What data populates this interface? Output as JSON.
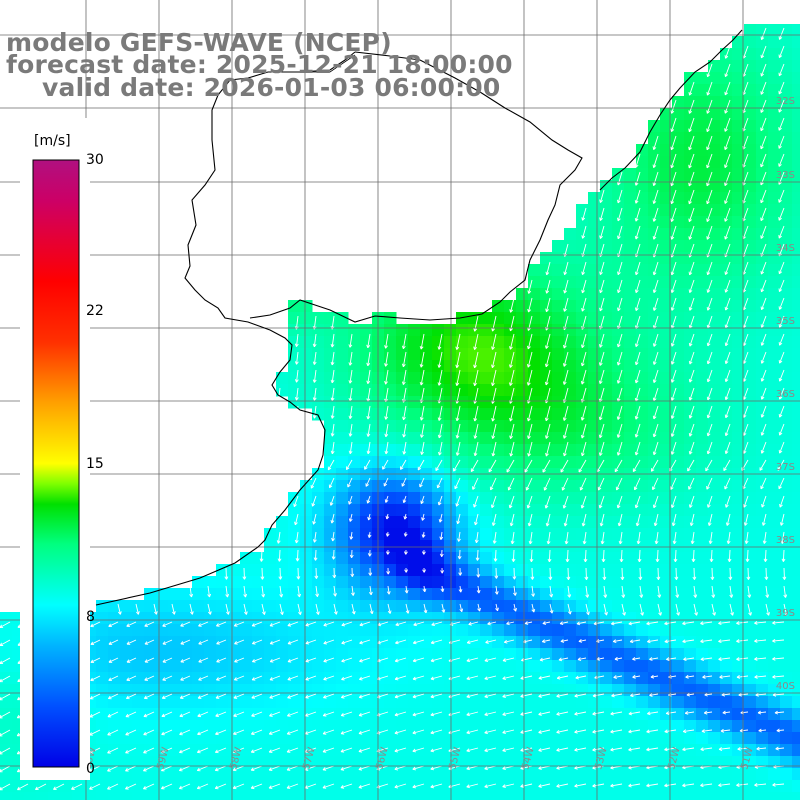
{
  "title": {
    "model": "modelo GEFS-WAVE (NCEP)",
    "forecast": "forecast date: 2025-12-21 18:00:00",
    "valid": "valid date: 2026-01-03 06:00:00"
  },
  "colorbar": {
    "units": "[m/s]",
    "ticks": [
      "30",
      "22",
      "15",
      "8",
      "0"
    ],
    "range": [
      0,
      30
    ],
    "colors": [
      "#0000e6",
      "#0050ff",
      "#00b4ff",
      "#00ffff",
      "#00ff80",
      "#00e000",
      "#80ff00",
      "#ffff00",
      "#ffa000",
      "#ff3000",
      "#ff0000",
      "#cc0066",
      "#b01080"
    ]
  },
  "grid": {
    "lat_labels": [
      "32S",
      "33S",
      "34S",
      "35S",
      "36S",
      "37S",
      "38S",
      "39S",
      "40S",
      "41S"
    ],
    "lon_labels": [
      "60W",
      "59W",
      "58W",
      "57W",
      "56W",
      "55W",
      "54W",
      "53W",
      "52W",
      "51W"
    ]
  },
  "map": {
    "variable": "wind speed and direction",
    "land_color": "#ffffff",
    "coastline_color": "#000000",
    "arrow_color": "#ffffff"
  }
}
